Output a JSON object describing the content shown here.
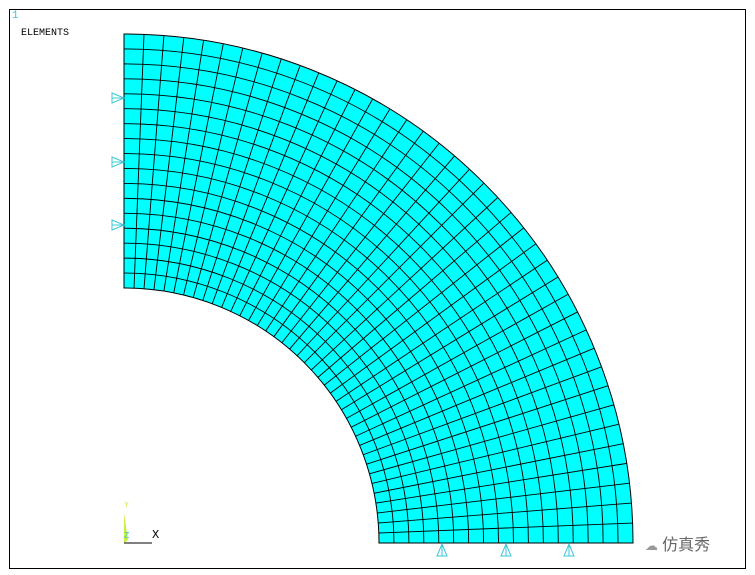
{
  "window_number": "1",
  "plot_title": "ELEMENTS",
  "triad": {
    "x_label": "X",
    "y_label": "Y",
    "z_label": "Z"
  },
  "watermark": "仿真秀",
  "colors": {
    "element_fill": "#00ffff",
    "element_edge": "#000000",
    "constraint": "#39c8d8",
    "triad_y": "#c8f040"
  }
}
